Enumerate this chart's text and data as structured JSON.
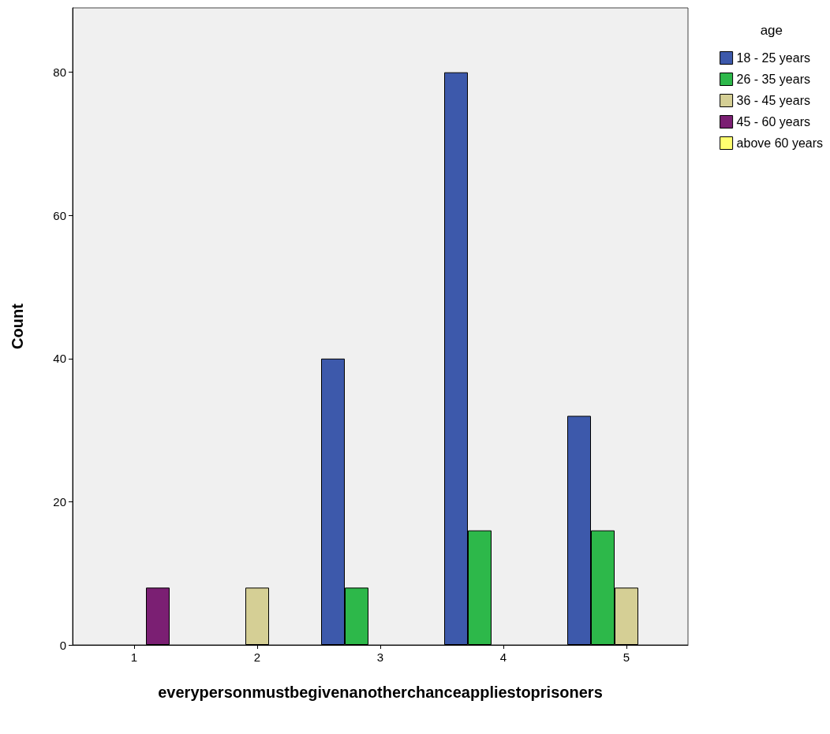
{
  "chart_data": {
    "type": "bar",
    "xlabel": "everypersonmustbegivenanotherchanceappliestoprisoners",
    "ylabel": "Count",
    "legend_title": "age",
    "categories": [
      "1",
      "2",
      "3",
      "4",
      "5"
    ],
    "series": [
      {
        "name": "18 - 25 years",
        "color": "#3d59ab",
        "values": [
          0,
          0,
          40,
          80,
          32
        ]
      },
      {
        "name": "26 - 35 years",
        "color": "#2db84a",
        "values": [
          0,
          0,
          8,
          16,
          16
        ]
      },
      {
        "name": "36 - 45 years",
        "color": "#d5cf95",
        "values": [
          0,
          8,
          0,
          0,
          8
        ]
      },
      {
        "name": "45 - 60 years",
        "color": "#7b1f73",
        "values": [
          8,
          0,
          0,
          0,
          0
        ]
      },
      {
        "name": "above 60 years",
        "color": "#ffff70",
        "values": [
          0,
          0,
          0,
          0,
          0
        ]
      }
    ],
    "ylim": [
      0,
      89
    ],
    "yticks": [
      0,
      20,
      40,
      60,
      80
    ],
    "grid": false,
    "legend": "top right"
  }
}
